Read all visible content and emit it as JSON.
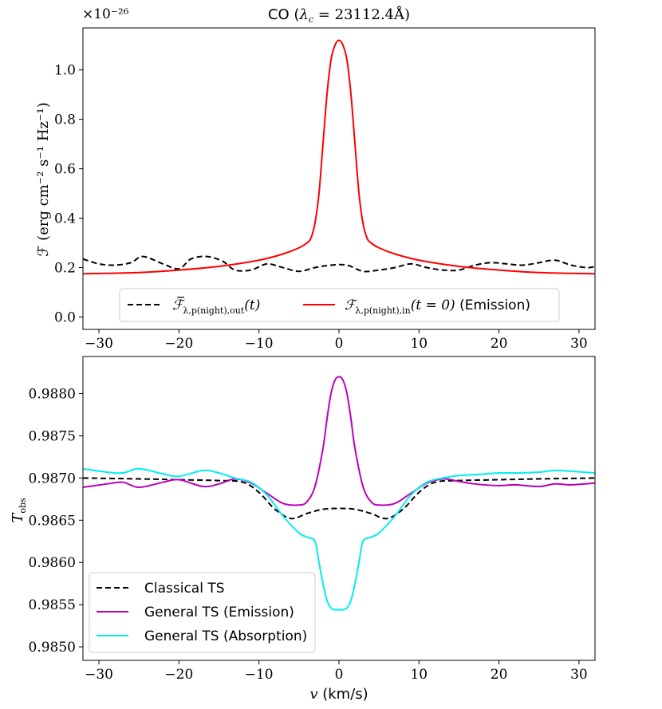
{
  "chart_data": [
    {
      "type": "line",
      "title": "CO (λ_c = 23112.4Å)",
      "title_prefix": "CO (",
      "title_lambda": "λ",
      "title_lambda_sub": "c",
      "title_value": " = 23112.4Å)",
      "xlabel": "",
      "ylabel": "ℱ (erg cm⁻² s⁻¹ Hz⁻¹)",
      "scale_note": "×10⁻²⁶",
      "xlim": [
        -32,
        32
      ],
      "ylim": [
        -0.05,
        1.17
      ],
      "xticks": [
        -30,
        -20,
        -10,
        0,
        10,
        20,
        30
      ],
      "xtick_labels": [
        "−30",
        "−20",
        "−10",
        "0",
        "10",
        "20",
        "30"
      ],
      "yticks": [
        0.0,
        0.2,
        0.4,
        0.6,
        0.8,
        1.0
      ],
      "ytick_labels": [
        "0.0",
        "0.2",
        "0.4",
        "0.6",
        "0.8",
        "1.0"
      ],
      "legend_position": "lower center",
      "series": [
        {
          "name": "F̄_λ,p(night),out(t)",
          "legend_main": "ℱ̅",
          "legend_sub": "λ,p(night),out",
          "legend_tail": "(t)",
          "color": "#000000",
          "style": "dashed",
          "x": [
            -32,
            -30,
            -28,
            -26,
            -24.5,
            -22,
            -20,
            -18.5,
            -16.5,
            -14.5,
            -13,
            -11,
            -9,
            -7,
            -5,
            -3,
            -1,
            1,
            3,
            5,
            7,
            9,
            11,
            13,
            15,
            17,
            19,
            21,
            23,
            25,
            27,
            29,
            31,
            32
          ],
          "y": [
            0.235,
            0.215,
            0.21,
            0.22,
            0.245,
            0.215,
            0.195,
            0.235,
            0.245,
            0.225,
            0.19,
            0.19,
            0.215,
            0.2,
            0.185,
            0.2,
            0.21,
            0.21,
            0.185,
            0.19,
            0.2,
            0.215,
            0.2,
            0.19,
            0.19,
            0.21,
            0.22,
            0.215,
            0.21,
            0.22,
            0.23,
            0.21,
            0.2,
            0.205
          ]
        },
        {
          "name": "F_λ,p(night),in(t = 0) (Emission)",
          "legend_main": "ℱ",
          "legend_sub": "λ,p(night),in",
          "legend_tail": "(t = 0)",
          "legend_extra": " (Emission)",
          "color": "#ff0000",
          "style": "solid",
          "x": [
            -32,
            -25,
            -20,
            -15,
            -10,
            -7,
            -5,
            -4,
            -3.5,
            -3,
            -2.5,
            -2,
            -1.5,
            -1,
            -0.5,
            0,
            0.5,
            1,
            1.5,
            2,
            2.5,
            3,
            3.5,
            4,
            5,
            7,
            10,
            15,
            20,
            25,
            32
          ],
          "y": [
            0.175,
            0.18,
            0.19,
            0.205,
            0.23,
            0.255,
            0.28,
            0.3,
            0.32,
            0.38,
            0.5,
            0.7,
            0.9,
            1.04,
            1.1,
            1.12,
            1.1,
            1.04,
            0.9,
            0.7,
            0.5,
            0.38,
            0.32,
            0.3,
            0.28,
            0.255,
            0.23,
            0.205,
            0.19,
            0.18,
            0.175
          ]
        }
      ]
    },
    {
      "type": "line",
      "title": "",
      "xlabel": "v (km/s)",
      "xlabel_var": "v",
      "xlabel_unit": " (km/s)",
      "ylabel": "T_obs",
      "ylabel_main": "T",
      "ylabel_sub": "obs",
      "xlim": [
        -32,
        32
      ],
      "ylim": [
        0.98484,
        0.98844
      ],
      "xticks": [
        -30,
        -20,
        -10,
        0,
        10,
        20,
        30
      ],
      "xtick_labels": [
        "−30",
        "−20",
        "−10",
        "0",
        "10",
        "20",
        "30"
      ],
      "yticks": [
        0.985,
        0.9855,
        0.986,
        0.9865,
        0.987,
        0.9875,
        0.988
      ],
      "ytick_labels": [
        "0.9850",
        "0.9855",
        "0.9860",
        "0.9865",
        "0.9870",
        "0.9875",
        "0.9880"
      ],
      "legend_position": "lower left",
      "series": [
        {
          "name": "Classical TS",
          "color": "#000000",
          "style": "dashed",
          "x": [
            -32,
            -25,
            -20,
            -15,
            -12,
            -10,
            -8,
            -6,
            -4,
            -2,
            0,
            2,
            4,
            6,
            8,
            10,
            12,
            15,
            20,
            25,
            32
          ],
          "y": [
            0.987,
            0.98699,
            0.98698,
            0.98697,
            0.98695,
            0.98683,
            0.98663,
            0.98652,
            0.98658,
            0.98663,
            0.98664,
            0.98663,
            0.98658,
            0.98652,
            0.98663,
            0.98683,
            0.98695,
            0.98697,
            0.98698,
            0.98699,
            0.987
          ]
        },
        {
          "name": "General TS (Emission)",
          "color": "#bb00bb",
          "style": "solid",
          "x": [
            -32,
            -29,
            -27,
            -25,
            -22,
            -20,
            -17,
            -15,
            -13,
            -11,
            -9,
            -7,
            -5,
            -4,
            -3,
            -2,
            -1.5,
            -1,
            -0.5,
            0,
            0.5,
            1,
            1.5,
            2,
            3,
            4,
            5,
            7,
            9,
            11,
            13,
            15,
            17,
            20,
            22,
            25,
            27,
            29,
            32
          ],
          "y": [
            0.98689,
            0.98693,
            0.98695,
            0.98689,
            0.98695,
            0.98698,
            0.9869,
            0.98693,
            0.98699,
            0.98694,
            0.98682,
            0.9867,
            0.98668,
            0.98672,
            0.9869,
            0.98735,
            0.9877,
            0.988,
            0.98816,
            0.9882,
            0.98816,
            0.988,
            0.9877,
            0.98735,
            0.9869,
            0.98672,
            0.98668,
            0.9867,
            0.98682,
            0.98694,
            0.98699,
            0.98696,
            0.98693,
            0.98691,
            0.98692,
            0.9869,
            0.98693,
            0.98692,
            0.98694
          ]
        },
        {
          "name": "General TS (Absorption)",
          "color": "#00eeee",
          "style": "solid",
          "x": [
            -32,
            -29,
            -27,
            -25,
            -22,
            -20,
            -17,
            -15,
            -13,
            -11,
            -9,
            -7,
            -5,
            -4,
            -3,
            -2.5,
            -2,
            -1.5,
            -1,
            -0.5,
            0,
            0.5,
            1,
            1.5,
            2,
            2.5,
            3,
            4,
            5,
            7,
            9,
            11,
            13,
            15,
            17,
            20,
            22,
            25,
            27,
            29,
            32
          ],
          "y": [
            0.98711,
            0.98707,
            0.98706,
            0.98711,
            0.98705,
            0.98702,
            0.98709,
            0.98706,
            0.987,
            0.98695,
            0.9868,
            0.98655,
            0.98635,
            0.9863,
            0.98625,
            0.986,
            0.98575,
            0.98555,
            0.98546,
            0.98544,
            0.98544,
            0.98544,
            0.98546,
            0.98555,
            0.98575,
            0.986,
            0.98625,
            0.9863,
            0.98635,
            0.98655,
            0.9868,
            0.98695,
            0.987,
            0.98703,
            0.98704,
            0.98706,
            0.98706,
            0.98707,
            0.98709,
            0.98708,
            0.98706
          ]
        }
      ]
    }
  ]
}
